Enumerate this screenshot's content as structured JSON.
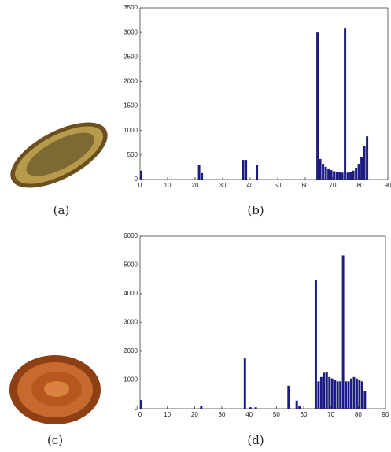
{
  "captions": [
    "(a)",
    "(b)",
    "(c)",
    "(d)"
  ],
  "chart_data": [
    {
      "type": "bar",
      "color": "#1c1c80",
      "x": [
        0,
        21,
        22,
        37,
        38,
        42,
        64,
        65,
        66,
        67,
        68,
        69,
        70,
        71,
        72,
        73,
        74,
        75,
        76,
        77,
        78,
        79,
        80,
        81,
        82
      ],
      "values": [
        180,
        300,
        130,
        400,
        400,
        300,
        3000,
        420,
        320,
        260,
        220,
        190,
        170,
        160,
        150,
        140,
        3080,
        140,
        150,
        180,
        240,
        320,
        450,
        680,
        880
      ],
      "xlim": [
        0,
        90
      ],
      "xticks": [
        0,
        10,
        20,
        30,
        40,
        50,
        60,
        70,
        80,
        90
      ],
      "ylim": [
        0,
        3500
      ],
      "yticks": [
        0,
        500,
        1000,
        1500,
        2000,
        2500,
        3000,
        3500
      ]
    },
    {
      "type": "bar",
      "color": "#1c1c80",
      "x": [
        0,
        22,
        38,
        40,
        42,
        54,
        57,
        58,
        64,
        65,
        66,
        67,
        68,
        69,
        70,
        71,
        72,
        73,
        74,
        75,
        76,
        77,
        78,
        79,
        80,
        81,
        82
      ],
      "values": [
        300,
        100,
        1750,
        50,
        50,
        800,
        280,
        80,
        4480,
        950,
        1100,
        1250,
        1280,
        1100,
        1050,
        1000,
        950,
        950,
        5330,
        950,
        950,
        1050,
        1100,
        1050,
        1000,
        950,
        620
      ],
      "xlim": [
        0,
        90
      ],
      "xticks": [
        0,
        10,
        20,
        30,
        40,
        50,
        60,
        70,
        80,
        90
      ],
      "ylim": [
        0,
        6000
      ],
      "yticks": [
        0,
        1000,
        2000,
        3000,
        4000,
        5000,
        6000
      ]
    }
  ]
}
